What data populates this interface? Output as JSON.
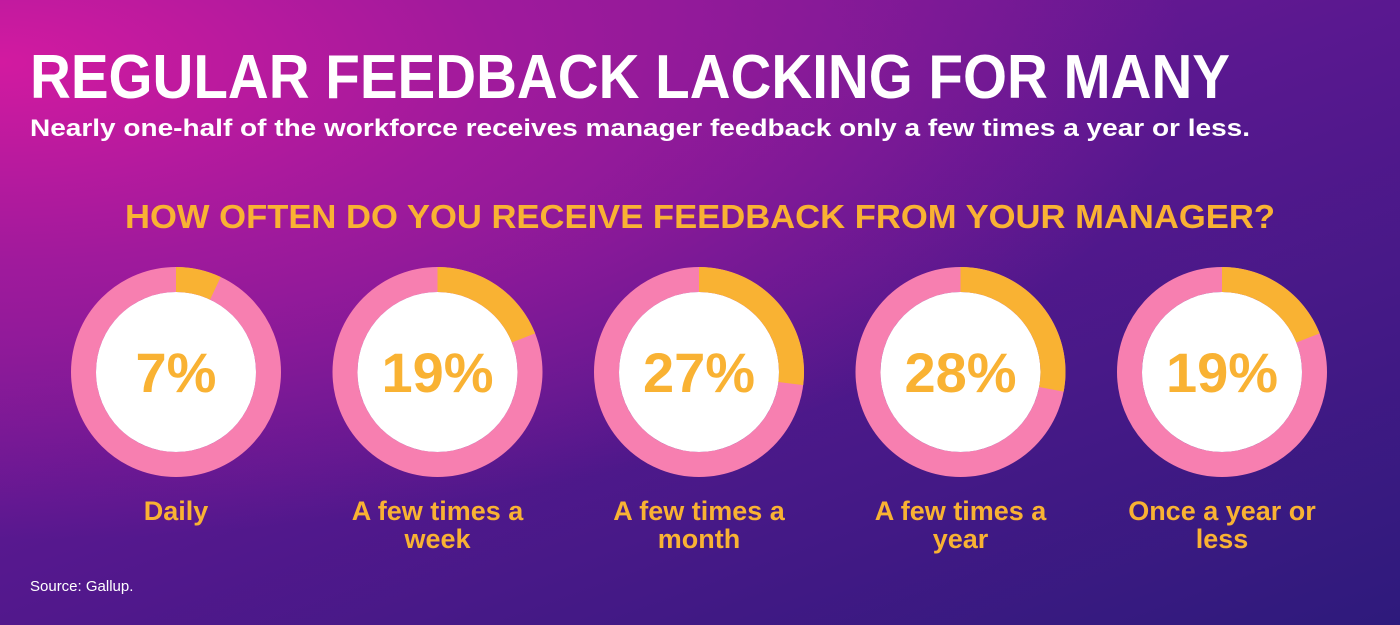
{
  "chart_data": {
    "type": "donut",
    "title": "REGULAR FEEDBACK LACKING FOR MANY",
    "subtitle": "Nearly one-half of the workforce receives manager feedback only a few times a year or less.",
    "question": "HOW OFTEN DO YOU RECEIVE FEEDBACK FROM YOUR MANAGER?",
    "categories": [
      "Daily",
      "A few times a week",
      "A few times a month",
      "A few times a year",
      "Once a year or less"
    ],
    "values": [
      7,
      19,
      27,
      28,
      19
    ],
    "value_labels": [
      "7%",
      "19%",
      "27%",
      "28%",
      "19%"
    ],
    "total": 100,
    "color": "#f9b233",
    "track_color": "#f77fb0",
    "source": "Source: Gallup."
  }
}
